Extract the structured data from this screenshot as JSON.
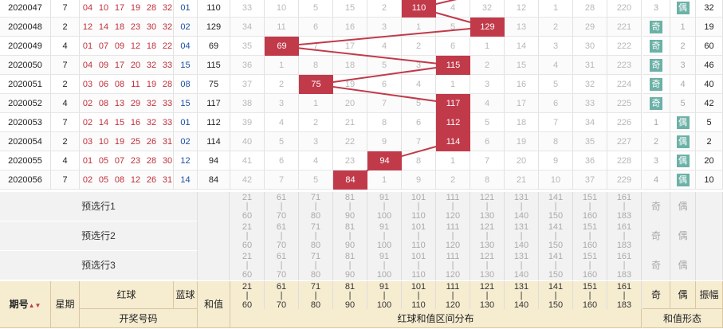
{
  "rows": [
    {
      "issue": "2020047",
      "week": "7",
      "reds": [
        "04",
        "10",
        "17",
        "19",
        "28",
        "32"
      ],
      "blue": "01",
      "sum": "110",
      "zone_cells": [
        "33",
        "10",
        "5",
        "15",
        "2",
        "",
        "4",
        "32",
        "12",
        "1",
        "28",
        "220"
      ],
      "hit_zone": 5,
      "odd": "3",
      "even": "偶",
      "even_hl": true,
      "odd_hl": false,
      "amp": "32"
    },
    {
      "issue": "2020048",
      "week": "2",
      "reds": [
        "12",
        "14",
        "18",
        "23",
        "30",
        "32"
      ],
      "blue": "02",
      "sum": "129",
      "zone_cells": [
        "34",
        "11",
        "6",
        "16",
        "3",
        "1",
        "5",
        "",
        "13",
        "2",
        "29",
        "221"
      ],
      "hit_zone": 7,
      "odd": "奇",
      "even": "1",
      "even_hl": false,
      "odd_hl": true,
      "amp": "19"
    },
    {
      "issue": "2020049",
      "week": "4",
      "reds": [
        "01",
        "07",
        "09",
        "12",
        "18",
        "22"
      ],
      "blue": "04",
      "sum": "69",
      "zone_cells": [
        "35",
        "",
        "7",
        "17",
        "4",
        "2",
        "6",
        "1",
        "14",
        "3",
        "30",
        "222"
      ],
      "hit_zone": 1,
      "odd": "奇",
      "even": "2",
      "even_hl": false,
      "odd_hl": true,
      "amp": "60"
    },
    {
      "issue": "2020050",
      "week": "7",
      "reds": [
        "04",
        "09",
        "17",
        "20",
        "32",
        "33"
      ],
      "blue": "15",
      "sum": "115",
      "zone_cells": [
        "36",
        "1",
        "8",
        "18",
        "5",
        "3",
        "",
        "2",
        "15",
        "4",
        "31",
        "223"
      ],
      "hit_zone": 6,
      "odd": "奇",
      "even": "3",
      "even_hl": false,
      "odd_hl": true,
      "amp": "46"
    },
    {
      "issue": "2020051",
      "week": "2",
      "reds": [
        "03",
        "06",
        "08",
        "11",
        "19",
        "28"
      ],
      "blue": "08",
      "sum": "75",
      "zone_cells": [
        "37",
        "2",
        "",
        "19",
        "6",
        "4",
        "1",
        "3",
        "16",
        "5",
        "32",
        "224"
      ],
      "hit_zone": 2,
      "odd": "奇",
      "even": "4",
      "even_hl": false,
      "odd_hl": true,
      "amp": "40"
    },
    {
      "issue": "2020052",
      "week": "4",
      "reds": [
        "02",
        "08",
        "13",
        "29",
        "32",
        "33"
      ],
      "blue": "15",
      "sum": "117",
      "zone_cells": [
        "38",
        "3",
        "1",
        "20",
        "7",
        "5",
        "",
        "4",
        "17",
        "6",
        "33",
        "225"
      ],
      "hit_zone": 6,
      "odd": "奇",
      "even": "5",
      "even_hl": false,
      "odd_hl": true,
      "amp": "42"
    },
    {
      "issue": "2020053",
      "week": "7",
      "reds": [
        "02",
        "14",
        "15",
        "16",
        "32",
        "33"
      ],
      "blue": "01",
      "sum": "112",
      "zone_cells": [
        "39",
        "4",
        "2",
        "21",
        "8",
        "6",
        "",
        "5",
        "18",
        "7",
        "34",
        "226"
      ],
      "hit_zone": 6,
      "odd": "1",
      "even": "偶",
      "even_hl": true,
      "odd_hl": false,
      "amp": "5"
    },
    {
      "issue": "2020054",
      "week": "2",
      "reds": [
        "03",
        "10",
        "19",
        "25",
        "26",
        "31"
      ],
      "blue": "02",
      "sum": "114",
      "zone_cells": [
        "40",
        "5",
        "3",
        "22",
        "9",
        "7",
        "",
        "6",
        "19",
        "8",
        "35",
        "227"
      ],
      "hit_zone": 6,
      "odd": "2",
      "even": "偶",
      "even_hl": true,
      "odd_hl": false,
      "amp": "2"
    },
    {
      "issue": "2020055",
      "week": "4",
      "reds": [
        "01",
        "05",
        "07",
        "23",
        "28",
        "30"
      ],
      "blue": "12",
      "sum": "94",
      "zone_cells": [
        "41",
        "6",
        "4",
        "23",
        "",
        "8",
        "1",
        "7",
        "20",
        "9",
        "36",
        "228"
      ],
      "hit_zone": 4,
      "odd": "3",
      "even": "偶",
      "even_hl": true,
      "odd_hl": false,
      "amp": "20"
    },
    {
      "issue": "2020056",
      "week": "7",
      "reds": [
        "02",
        "05",
        "08",
        "12",
        "26",
        "31"
      ],
      "blue": "14",
      "sum": "84",
      "zone_cells": [
        "42",
        "7",
        "5",
        "",
        "1",
        "9",
        "2",
        "8",
        "21",
        "10",
        "37",
        "229"
      ],
      "hit_zone": 3,
      "odd": "4",
      "even": "偶",
      "even_hl": true,
      "odd_hl": false,
      "amp": "10"
    }
  ],
  "zones": [
    {
      "lo": "21",
      "hi": "60"
    },
    {
      "lo": "61",
      "hi": "70"
    },
    {
      "lo": "71",
      "hi": "80"
    },
    {
      "lo": "81",
      "hi": "90"
    },
    {
      "lo": "91",
      "hi": "100"
    },
    {
      "lo": "101",
      "hi": "110"
    },
    {
      "lo": "111",
      "hi": "120"
    },
    {
      "lo": "121",
      "hi": "130"
    },
    {
      "lo": "131",
      "hi": "140"
    },
    {
      "lo": "141",
      "hi": "150"
    },
    {
      "lo": "151",
      "hi": "160"
    },
    {
      "lo": "161",
      "hi": "183"
    }
  ],
  "preselect": [
    {
      "label": "预选行1",
      "odd": "奇",
      "even": "偶"
    },
    {
      "label": "预选行2",
      "odd": "奇",
      "even": "偶"
    },
    {
      "label": "预选行3",
      "odd": "奇",
      "even": "偶"
    }
  ],
  "header": {
    "issue": "期号",
    "sort_icon": "▲▼",
    "week": "星期",
    "red": "红球",
    "blue": "蓝球",
    "sum": "和值",
    "draw_numbers": "开奖号码",
    "zone_dist": "红球和值区间分布",
    "odd": "奇",
    "even": "偶",
    "amp": "振幅",
    "shape": "和值形态"
  },
  "colors": {
    "hit": "#c13a4a",
    "line": "#c13a4a",
    "parity": "#6cb1a7",
    "header_bg": "#f6ecd0",
    "red_text": "#c0303a",
    "blue_text": "#1a4fa3"
  }
}
